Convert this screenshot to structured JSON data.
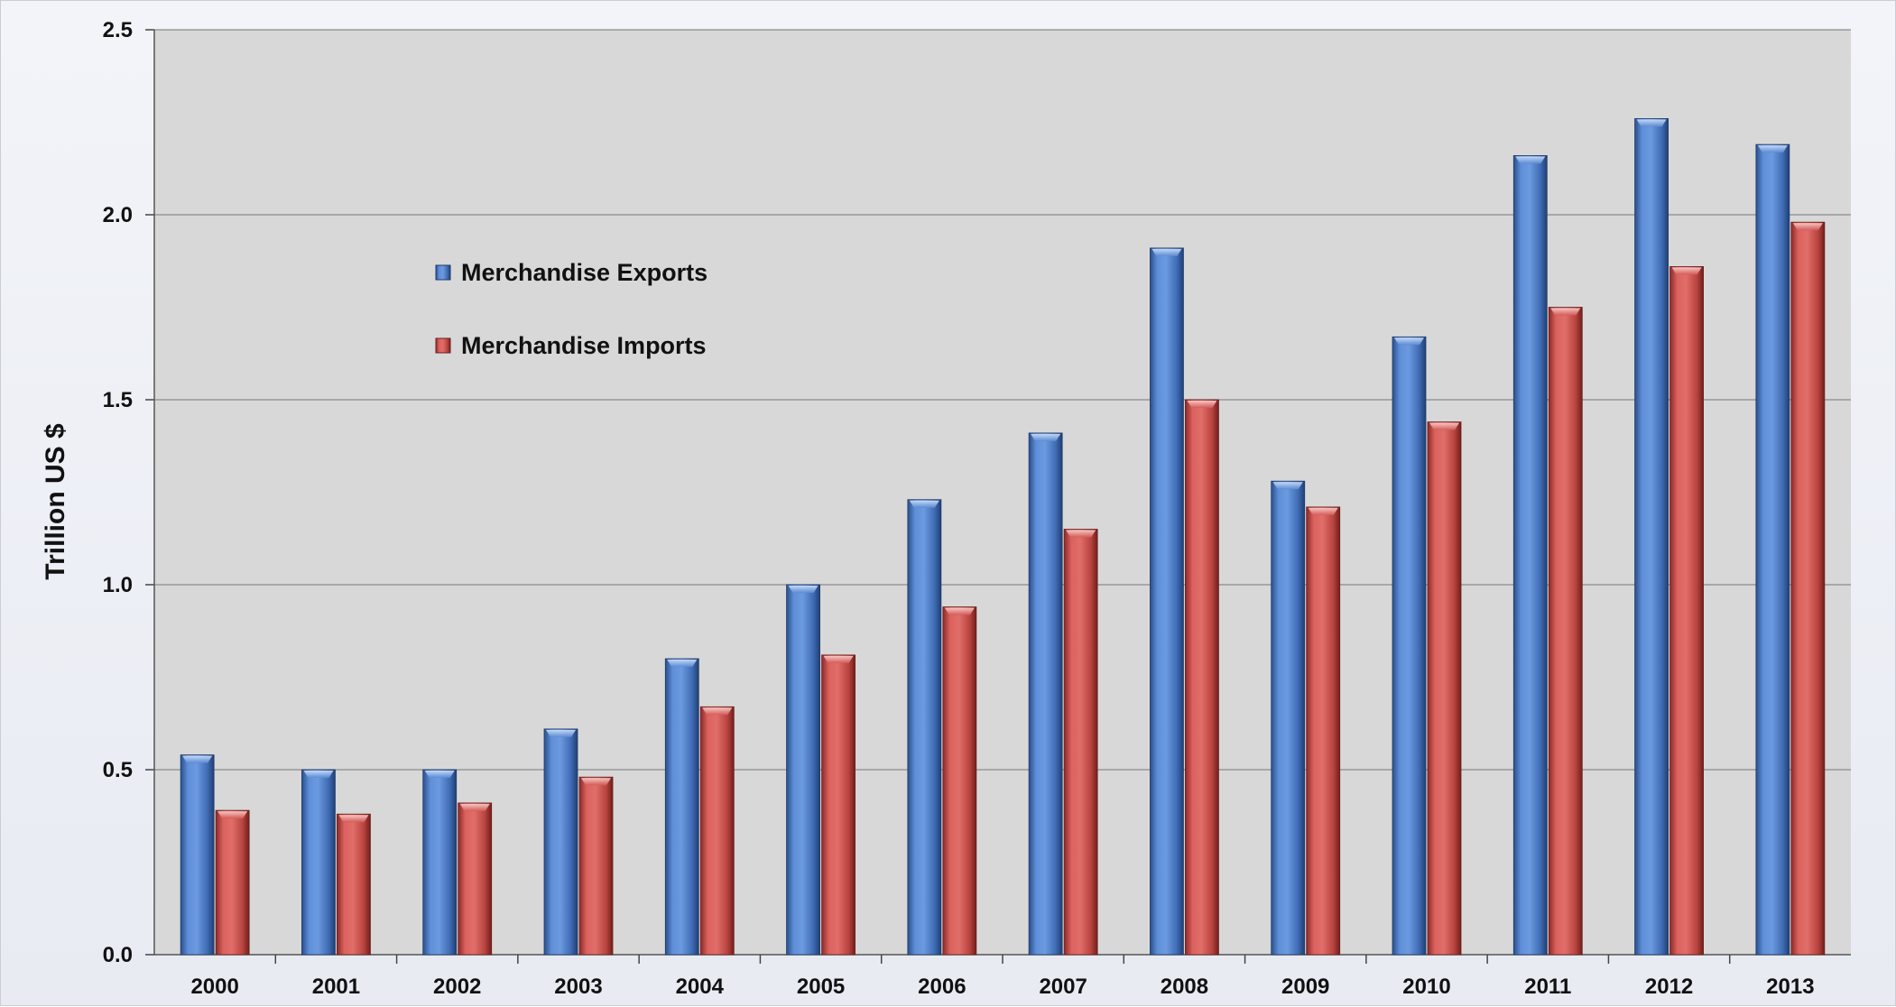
{
  "chart_data": {
    "type": "bar",
    "title": "",
    "xlabel": "",
    "ylabel": "Trillion US $",
    "ylim": [
      0,
      2.5
    ],
    "yticks": [
      "0.0",
      "0.5",
      "1.0",
      "1.5",
      "2.0",
      "2.5"
    ],
    "ytick_values": [
      0,
      0.5,
      1.0,
      1.5,
      2.0,
      2.5
    ],
    "grid": true,
    "legend_position": "upper-left inside plot",
    "categories": [
      "2000",
      "2001",
      "2002",
      "2003",
      "2004",
      "2005",
      "2006",
      "2007",
      "2008",
      "2009",
      "2010",
      "2011",
      "2012",
      "2013"
    ],
    "series": [
      {
        "name": "Merchandise Exports",
        "color": "#4a7cc9",
        "values": [
          0.54,
          0.5,
          0.5,
          0.61,
          0.8,
          1.0,
          1.23,
          1.41,
          1.91,
          1.28,
          1.67,
          2.16,
          2.26,
          2.19
        ]
      },
      {
        "name": "Merchandise Imports",
        "color": "#d0504c",
        "values": [
          0.39,
          0.38,
          0.41,
          0.48,
          0.67,
          0.81,
          0.94,
          1.15,
          1.5,
          1.21,
          1.44,
          1.75,
          1.86,
          1.98
        ]
      }
    ],
    "plot_background": "#d8d8d8"
  }
}
